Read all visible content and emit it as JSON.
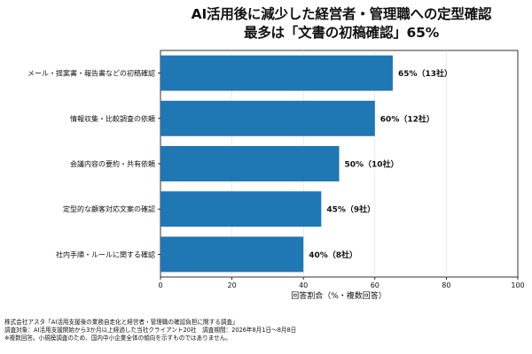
{
  "chart_data": {
    "type": "bar",
    "orientation": "horizontal",
    "title": [
      "AI活用後に減少した経営者・管理職への定型確認",
      "最多は「文書の初稿確認」65%"
    ],
    "categories": [
      "メール・提案書・報告書などの初稿確認",
      "情報収集・比較調査の依頼",
      "会議内容の要約・共有依頼",
      "定型的な顧客対応文案の確認",
      "社内手順・ルールに関する確認"
    ],
    "values": [
      65,
      60,
      50,
      45,
      40
    ],
    "data_labels": [
      "65%（13社）",
      "60%（12社）",
      "50%（10社）",
      "45%（9社）",
      "40%（8社）"
    ],
    "xlabel": "回答割合（%・複数回答）",
    "ylabel": "",
    "xlim": [
      0,
      100
    ],
    "xticks": [
      0,
      20,
      40,
      60,
      80,
      100
    ],
    "grid": "vertical",
    "bar_color": "#1f77b4"
  },
  "footer": {
    "lines": [
      "株式会社アスタ「AI活用支援後の業務自走化と経営者・管理職の確認負担に関する調査」",
      "調査対象：AI活用支援開始から3か月以上経過した当社クライアント20社　調査期間：2026年8月1日〜8月8日",
      "※複数回答。小規模調査のため、国内中小企業全体の傾向を示すものではありません。"
    ]
  }
}
